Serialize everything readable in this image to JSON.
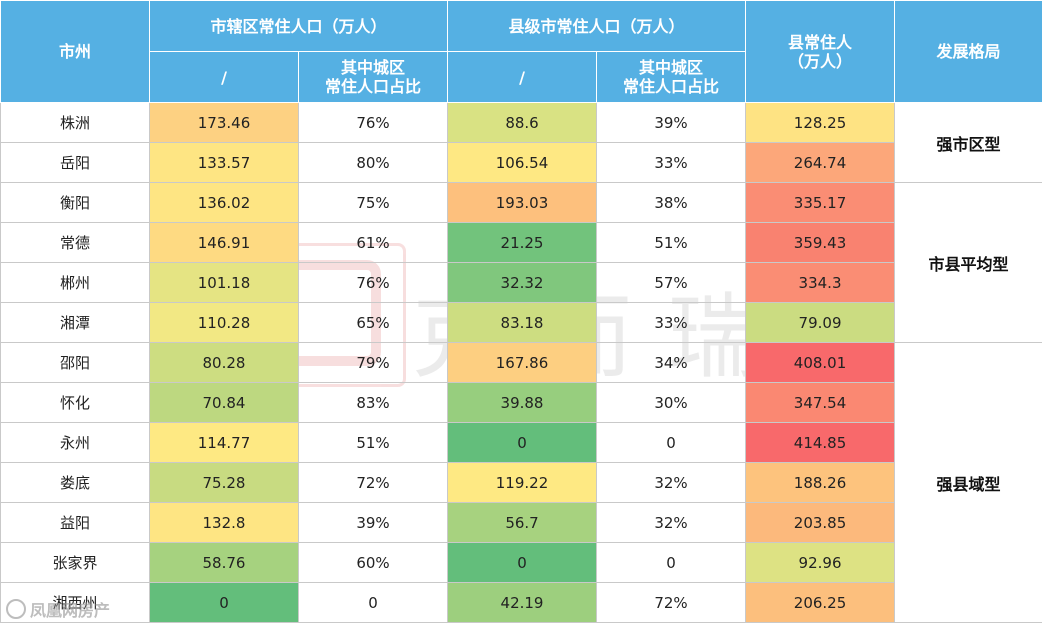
{
  "header": {
    "city": "市州",
    "district_group": "市辖区常住人口（万人）",
    "county_city_group": "县级市常住人口（万人）",
    "county_pop_line1": "县常住人",
    "county_pop_line2": "（万人）",
    "pattern": "发展格局",
    "sub_total": "/",
    "sub_ratio_line1": "其中城区",
    "sub_ratio_line2": "常住人口占比"
  },
  "rows": [
    {
      "city": "株洲",
      "dist": "173.46",
      "dist_ratio": "76%",
      "cc": "88.6",
      "cc_ratio": "39%",
      "county": "128.25",
      "dist_color": "#fdd182",
      "cc_color": "#d9e283",
      "county_color": "#fee383"
    },
    {
      "city": "岳阳",
      "dist": "133.57",
      "dist_ratio": "80%",
      "cc": "106.54",
      "cc_ratio": "33%",
      "county": "264.74",
      "dist_color": "#fee583",
      "cc_color": "#fee883",
      "county_color": "#fca77a"
    },
    {
      "city": "衡阳",
      "dist": "136.02",
      "dist_ratio": "75%",
      "cc": "193.03",
      "cc_ratio": "38%",
      "county": "335.17",
      "dist_color": "#fee583",
      "cc_color": "#fdc07d",
      "county_color": "#fa8d74"
    },
    {
      "city": "常德",
      "dist": "146.91",
      "dist_ratio": "61%",
      "cc": "21.25",
      "cc_ratio": "51%",
      "county": "359.43",
      "dist_color": "#feda82",
      "cc_color": "#72c37c",
      "county_color": "#f98270"
    },
    {
      "city": "郴州",
      "dist": "101.18",
      "dist_ratio": "76%",
      "cc": "32.32",
      "cc_ratio": "57%",
      "county": "334.3",
      "dist_color": "#e5e483",
      "cc_color": "#80c77d",
      "county_color": "#fa8d74"
    },
    {
      "city": "湘潭",
      "dist": "110.28",
      "dist_ratio": "65%",
      "cc": "83.18",
      "cc_ratio": "33%",
      "county": "79.09",
      "dist_color": "#f2e884",
      "cc_color": "#cddd81",
      "county_color": "#cbdc81"
    },
    {
      "city": "邵阳",
      "dist": "80.28",
      "dist_ratio": "79%",
      "cc": "167.86",
      "cc_ratio": "34%",
      "county": "408.01",
      "dist_color": "#cddd81",
      "cc_color": "#fdcf81",
      "county_color": "#f8696b"
    },
    {
      "city": "怀化",
      "dist": "70.84",
      "dist_ratio": "83%",
      "cc": "39.88",
      "cc_ratio": "30%",
      "county": "347.54",
      "dist_color": "#bdd880",
      "cc_color": "#97ce7e",
      "county_color": "#fa8872"
    },
    {
      "city": "永州",
      "dist": "114.77",
      "dist_ratio": "51%",
      "cc": "0",
      "cc_ratio": "0",
      "county": "414.85",
      "dist_color": "#fee983",
      "cc_color": "#63be7b",
      "county_color": "#f8696b"
    },
    {
      "city": "娄底",
      "dist": "75.28",
      "dist_ratio": "72%",
      "cc": "119.22",
      "cc_ratio": "32%",
      "county": "188.26",
      "dist_color": "#c8db81",
      "cc_color": "#fee983",
      "county_color": "#fdc37d"
    },
    {
      "city": "益阳",
      "dist": "132.8",
      "dist_ratio": "39%",
      "cc": "56.7",
      "cc_ratio": "32%",
      "county": "203.85",
      "dist_color": "#fee583",
      "cc_color": "#a7d27f",
      "county_color": "#fcb97c"
    },
    {
      "city": "张家界",
      "dist": "58.76",
      "dist_ratio": "60%",
      "cc": "0",
      "cc_ratio": "0",
      "county": "92.96",
      "dist_color": "#a6d27f",
      "cc_color": "#63be7b",
      "county_color": "#dde283"
    },
    {
      "city": "湘西州",
      "dist": "0",
      "dist_ratio": "0",
      "cc": "42.19",
      "cc_ratio": "72%",
      "county": "206.25",
      "dist_color": "#63be7b",
      "cc_color": "#9dcf7e",
      "county_color": "#fcbf7d"
    }
  ],
  "patterns": {
    "strong_city": "强市区型",
    "balanced": "市县平均型",
    "strong_county": "强县域型"
  },
  "watermark": "克而瑞",
  "footer_logo": "凤凰网房产"
}
